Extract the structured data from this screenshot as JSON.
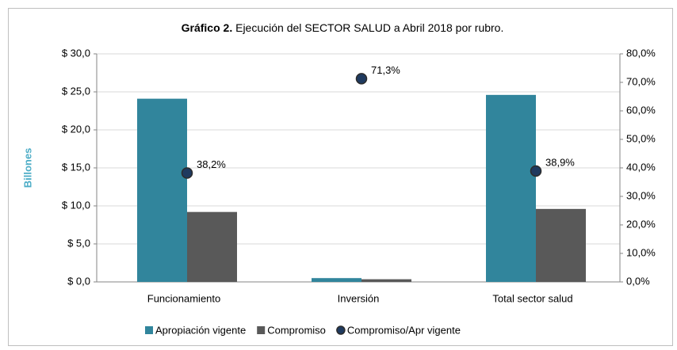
{
  "chart_data": {
    "type": "bar",
    "title": [
      "Gráfico  2.",
      " Ejecución del SECTOR SALUD a Abril 2018 por rubro."
    ],
    "y_label": "Billones",
    "categories": [
      "Funcionamiento",
      "Inversión",
      "Total sector salud"
    ],
    "series": [
      {
        "name": "Apropiación vigente",
        "color": "#31859c",
        "values": [
          24.1,
          0.5,
          24.6
        ]
      },
      {
        "name": "Compromiso",
        "color": "#595959",
        "values": [
          9.2,
          0.35,
          9.6
        ]
      },
      {
        "name": "Compromiso/Apr vigente",
        "color": "#243f60",
        "axis": "y2",
        "type": "scatter",
        "values": [
          38.2,
          71.3,
          38.9
        ],
        "value_labels": [
          "38,2%",
          "71,3%",
          "38,9%"
        ]
      }
    ],
    "ylim": [
      0,
      30
    ],
    "yticks": [
      {
        "value": 0,
        "label": "$ 0,0"
      },
      {
        "value": 5,
        "label": "$ 5,0"
      },
      {
        "value": 10,
        "label": "$ 10,0"
      },
      {
        "value": 15,
        "label": "$ 15,0"
      },
      {
        "value": 20,
        "label": "$ 20,0"
      },
      {
        "value": 25,
        "label": "$ 25,0"
      },
      {
        "value": 30,
        "label": "$ 30,0"
      }
    ],
    "y2lim": [
      0,
      80
    ],
    "y2ticks": [
      {
        "value": 0,
        "label": "0,0%"
      },
      {
        "value": 10,
        "label": "10,0%"
      },
      {
        "value": 20,
        "label": "20,0%"
      },
      {
        "value": 30,
        "label": "30,0%"
      },
      {
        "value": 40,
        "label": "40,0%"
      },
      {
        "value": 50,
        "label": "50,0%"
      },
      {
        "value": 60,
        "label": "60,0%"
      },
      {
        "value": 70,
        "label": "70,0%"
      },
      {
        "value": 80,
        "label": "80,0%"
      }
    ],
    "grid": true
  }
}
